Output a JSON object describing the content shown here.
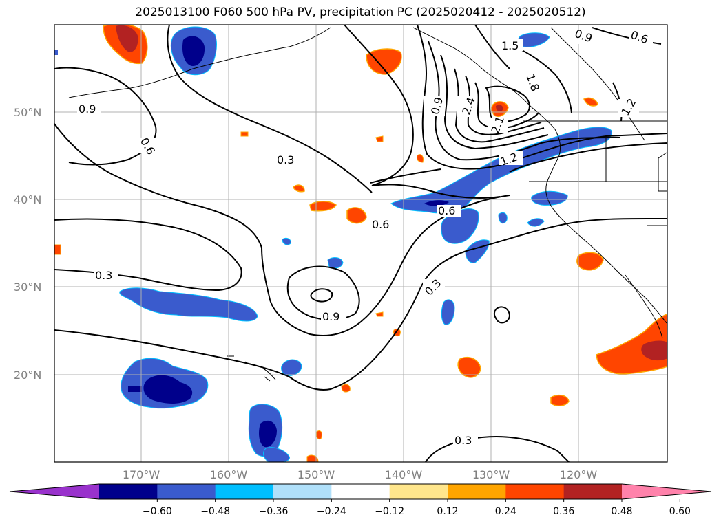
{
  "title": "2025013100 F060 500 hPa PV, precipitation PC (2025020412 - 2025020512)",
  "map": {
    "lat_labels": [
      "50°N",
      "40°N",
      "30°N",
      "20°N"
    ],
    "lon_labels": [
      "170°W",
      "160°W",
      "150°W",
      "140°W",
      "130°W",
      "120°W"
    ],
    "pv_contour_labels": [
      "0.9",
      "0.6",
      "0.3",
      "0.3",
      "0.6",
      "0.6",
      "0.9",
      "0.3",
      "0.9",
      "0.3",
      "1.5",
      "0.9",
      "0.6",
      "0.9",
      "2.4",
      "2.1",
      "1.8",
      "1.2",
      "1.2"
    ]
  },
  "colorbar": {
    "tick_labels": [
      "−0.60",
      "−0.48",
      "−0.36",
      "−0.24",
      "−0.12",
      "0.12",
      "0.24",
      "0.36",
      "0.48",
      "0.60"
    ],
    "colors": [
      "#9932cc",
      "#00008b",
      "#3a5bcd",
      "#00bfff",
      "#b0e0fa",
      "#ffffff",
      "#ffe68c",
      "#ffa500",
      "#ff4500",
      "#b22222",
      "#ff82ab"
    ]
  }
}
